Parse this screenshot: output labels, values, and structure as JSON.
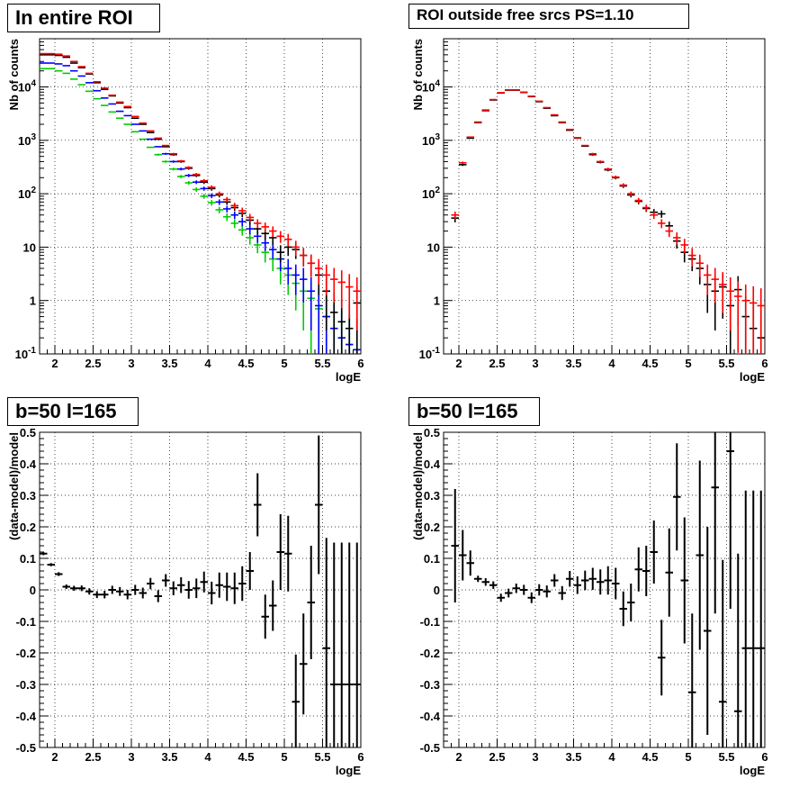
{
  "chart_data": [
    {
      "id": "p1",
      "type": "scatter",
      "title": "In entire ROI",
      "xlabel": "logE",
      "ylabel": "Nb of counts",
      "xlim": [
        1.8,
        6.0
      ],
      "ylim": [
        0.1,
        80000
      ],
      "yscale": "log",
      "grid": true,
      "xticks": [
        2,
        2.5,
        3,
        3.5,
        4,
        4.5,
        5,
        5.5,
        6
      ],
      "xticklabels": [
        "2",
        "2.5",
        "3",
        "3.5",
        "4",
        "4.5",
        "5",
        "5.5",
        "6"
      ],
      "yticks": [
        0.1,
        1,
        10,
        100,
        1000,
        10000
      ],
      "yticklabels": [
        "10^-1",
        "1",
        "10",
        "10^2",
        "10^3",
        "10^4"
      ],
      "x": [
        1.85,
        1.95,
        2.05,
        2.15,
        2.25,
        2.35,
        2.45,
        2.55,
        2.65,
        2.75,
        2.85,
        2.95,
        3.05,
        3.15,
        3.25,
        3.35,
        3.45,
        3.55,
        3.65,
        3.75,
        3.85,
        3.95,
        4.05,
        4.15,
        4.25,
        4.35,
        4.45,
        4.55,
        4.65,
        4.75,
        4.85,
        4.95,
        5.05,
        5.15,
        5.25,
        5.35,
        5.45,
        5.55,
        5.65,
        5.75,
        5.85,
        5.95
      ],
      "series": [
        {
          "color": "#ff0000",
          "values": [
            42000,
            42000,
            41000,
            38000,
            30000,
            24000,
            18000,
            12500,
            9500,
            7000,
            5200,
            4300,
            2800,
            2100,
            1500,
            1100,
            800,
            560,
            410,
            310,
            230,
            175,
            132,
            100,
            78,
            60,
            48,
            36,
            28,
            24,
            20,
            16,
            14,
            10,
            7,
            5,
            4,
            3,
            2.5,
            2.2,
            1.8,
            1.5
          ]
        },
        {
          "color": "#000000",
          "values": [
            40000,
            40000,
            39000,
            36000,
            28000,
            23000,
            17500,
            12000,
            9000,
            6800,
            5000,
            4100,
            2600,
            2000,
            1400,
            1050,
            760,
            540,
            400,
            300,
            220,
            165,
            125,
            95,
            70,
            55,
            43,
            32,
            22,
            18,
            15,
            8,
            10,
            9,
            7,
            5,
            3,
            1.5,
            0.6,
            0.4,
            0.3,
            0.9
          ]
        },
        {
          "color": "#0000ff",
          "values": [
            28000,
            28000,
            27000,
            25000,
            20000,
            16000,
            12000,
            8500,
            6200,
            4800,
            3500,
            2900,
            2000,
            1500,
            1050,
            760,
            560,
            400,
            290,
            220,
            165,
            125,
            92,
            70,
            52,
            40,
            30,
            22,
            16,
            12,
            9,
            6,
            4,
            3,
            2.5,
            1.5,
            0.8,
            0.5,
            0.3,
            0.2,
            0.15,
            0.12
          ]
        },
        {
          "color": "#00cc00",
          "values": [
            22000,
            22000,
            20000,
            18000,
            14000,
            11000,
            8300,
            6000,
            4500,
            3400,
            2600,
            2000,
            1450,
            1050,
            740,
            540,
            400,
            290,
            210,
            160,
            120,
            90,
            68,
            50,
            37,
            28,
            21,
            15,
            11,
            8,
            6,
            4,
            3,
            2.1,
            1.5,
            1.1,
            0.7,
            0.5,
            0.3,
            0.2,
            0.15,
            0.12
          ]
        }
      ]
    },
    {
      "id": "p2",
      "type": "scatter",
      "title": "ROI outside free srcs PS=1.10",
      "xlabel": "logE",
      "ylabel": "Nb of counts",
      "xlim": [
        1.8,
        6.0
      ],
      "ylim": [
        0.1,
        80000
      ],
      "yscale": "log",
      "grid": true,
      "xticks": [
        2,
        2.5,
        3,
        3.5,
        4,
        4.5,
        5,
        5.5,
        6
      ],
      "xticklabels": [
        "2",
        "2.5",
        "3",
        "3.5",
        "4",
        "4.5",
        "5",
        "5.5",
        "6"
      ],
      "yticks": [
        0.1,
        1,
        10,
        100,
        1000,
        10000
      ],
      "yticklabels": [
        "10^-1",
        "1",
        "10",
        "10^2",
        "10^3",
        "10^4"
      ],
      "x": [
        1.95,
        2.05,
        2.15,
        2.25,
        2.35,
        2.45,
        2.55,
        2.65,
        2.75,
        2.85,
        2.95,
        3.05,
        3.15,
        3.25,
        3.35,
        3.45,
        3.55,
        3.65,
        3.75,
        3.85,
        3.95,
        4.05,
        4.15,
        4.25,
        4.35,
        4.45,
        4.55,
        4.65,
        4.75,
        4.85,
        4.95,
        5.05,
        5.15,
        5.25,
        5.35,
        5.45,
        5.55,
        5.65,
        5.75,
        5.85,
        5.95
      ],
      "series": [
        {
          "color": "#ff0000",
          "values": [
            40,
            380,
            1150,
            2200,
            3700,
            5800,
            7800,
            8800,
            8800,
            8000,
            6700,
            5400,
            4100,
            3000,
            2200,
            1600,
            1120,
            800,
            560,
            400,
            290,
            205,
            145,
            100,
            75,
            55,
            40,
            28,
            20,
            15,
            11,
            7,
            5,
            3,
            2.5,
            2,
            1.5,
            1.2,
            1,
            0.9,
            0.8
          ]
        },
        {
          "color": "#000000",
          "values": [
            35,
            350,
            1100,
            2150,
            3600,
            5700,
            7700,
            8700,
            8700,
            7900,
            6600,
            5300,
            4000,
            2900,
            2150,
            1550,
            1100,
            780,
            540,
            390,
            280,
            200,
            140,
            95,
            72,
            53,
            45,
            42,
            25,
            13,
            8,
            6,
            4,
            2,
            1.5,
            1.8,
            0.8,
            1.6,
            0.5,
            0.3,
            0.2
          ]
        }
      ]
    },
    {
      "id": "p3",
      "type": "scatter",
      "title": "b=50 l=165",
      "xlabel": "logE",
      "ylabel": "(data-model)/model",
      "xlim": [
        1.8,
        6.0
      ],
      "ylim": [
        -0.5,
        0.5
      ],
      "grid": true,
      "xticks": [
        2,
        2.5,
        3,
        3.5,
        4,
        4.5,
        5,
        5.5,
        6
      ],
      "xticklabels": [
        "2",
        "2.5",
        "3",
        "3.5",
        "4",
        "4.5",
        "5",
        "5.5",
        "6"
      ],
      "yticks": [
        -0.5,
        -0.4,
        -0.3,
        -0.2,
        -0.1,
        0,
        0.1,
        0.2,
        0.3,
        0.4,
        0.5
      ],
      "yticklabels": [
        "-0.5",
        "-0.4",
        "-0.3",
        "-0.2",
        "-0.1",
        "0",
        "0.1",
        "0.2",
        "0.3",
        "0.4",
        "0.5"
      ],
      "x": [
        1.85,
        1.95,
        2.05,
        2.15,
        2.25,
        2.35,
        2.45,
        2.55,
        2.65,
        2.75,
        2.85,
        2.95,
        3.05,
        3.15,
        3.25,
        3.35,
        3.45,
        3.55,
        3.65,
        3.75,
        3.85,
        3.95,
        4.05,
        4.15,
        4.25,
        4.35,
        4.45,
        4.55,
        4.65,
        4.75,
        4.85,
        4.95,
        5.05,
        5.15,
        5.25,
        5.35,
        5.45,
        5.55,
        5.65,
        5.75,
        5.85,
        5.95
      ],
      "values": [
        0.115,
        0.08,
        0.05,
        0.01,
        0.005,
        0.005,
        -0.005,
        -0.015,
        -0.015,
        0,
        -0.005,
        -0.015,
        0,
        -0.01,
        0.02,
        -0.02,
        0.03,
        0.005,
        0.015,
        0,
        0.005,
        0.025,
        -0.01,
        0.015,
        0.01,
        0.005,
        0.02,
        0.06,
        0.27,
        -0.085,
        -0.05,
        0.12,
        0.115,
        -0.355,
        -0.235,
        -0.04,
        0.27,
        -0.185,
        -0.3,
        -0.3,
        -0.3,
        -0.3
      ],
      "errors": [
        0.005,
        0.005,
        0.006,
        0.007,
        0.008,
        0.009,
        0.01,
        0.011,
        0.012,
        0.013,
        0.014,
        0.015,
        0.016,
        0.017,
        0.018,
        0.019,
        0.02,
        0.022,
        0.025,
        0.028,
        0.031,
        0.033,
        0.036,
        0.04,
        0.045,
        0.05,
        0.055,
        0.06,
        0.1,
        0.07,
        0.08,
        0.12,
        0.12,
        0.15,
        0.16,
        0.18,
        0.22,
        0.35,
        0.45,
        0.45,
        0.45,
        0.45
      ]
    },
    {
      "id": "p4",
      "type": "scatter",
      "title": "b=50 l=165",
      "xlabel": "logE",
      "ylabel": "(data-model)/model",
      "xlim": [
        1.8,
        6.0
      ],
      "ylim": [
        -0.5,
        0.5
      ],
      "grid": true,
      "xticks": [
        2,
        2.5,
        3,
        3.5,
        4,
        4.5,
        5,
        5.5,
        6
      ],
      "xticklabels": [
        "2",
        "2.5",
        "3",
        "3.5",
        "4",
        "4.5",
        "5",
        "5.5",
        "6"
      ],
      "yticks": [
        -0.5,
        -0.4,
        -0.3,
        -0.2,
        -0.1,
        0,
        0.1,
        0.2,
        0.3,
        0.4,
        0.5
      ],
      "yticklabels": [
        "-0.5",
        "-0.4",
        "-0.3",
        "-0.2",
        "-0.1",
        "0",
        "0.1",
        "0.2",
        "0.3",
        "0.4",
        "0.5"
      ],
      "x": [
        1.95,
        2.05,
        2.15,
        2.25,
        2.35,
        2.45,
        2.55,
        2.65,
        2.75,
        2.85,
        2.95,
        3.05,
        3.15,
        3.25,
        3.35,
        3.45,
        3.55,
        3.65,
        3.75,
        3.85,
        3.95,
        4.05,
        4.15,
        4.25,
        4.35,
        4.45,
        4.55,
        4.65,
        4.75,
        4.85,
        4.95,
        5.05,
        5.15,
        5.25,
        5.35,
        5.45,
        5.55,
        5.65,
        5.75,
        5.85,
        5.95
      ],
      "values": [
        0.14,
        0.11,
        0.085,
        0.035,
        0.025,
        0.015,
        -0.025,
        -0.01,
        0.005,
        0,
        -0.025,
        0,
        -0.005,
        0.03,
        -0.01,
        0.035,
        0.015,
        0.03,
        0.035,
        0.025,
        0.03,
        0.02,
        -0.06,
        -0.04,
        0.065,
        0.06,
        0.12,
        -0.215,
        0.055,
        0.295,
        0.03,
        -0.325,
        0.11,
        -0.13,
        0.325,
        -0.355,
        0.44,
        -0.385,
        -0.185,
        -0.185,
        -0.185
      ],
      "errors": [
        0.18,
        0.08,
        0.04,
        0.01,
        0.012,
        0.012,
        0.013,
        0.014,
        0.015,
        0.016,
        0.017,
        0.018,
        0.019,
        0.02,
        0.022,
        0.025,
        0.028,
        0.031,
        0.035,
        0.04,
        0.045,
        0.05,
        0.055,
        0.06,
        0.07,
        0.08,
        0.1,
        0.12,
        0.14,
        0.17,
        0.2,
        0.25,
        0.3,
        0.33,
        0.4,
        0.45,
        0.5,
        0.5,
        0.5,
        0.5,
        0.5
      ]
    }
  ]
}
